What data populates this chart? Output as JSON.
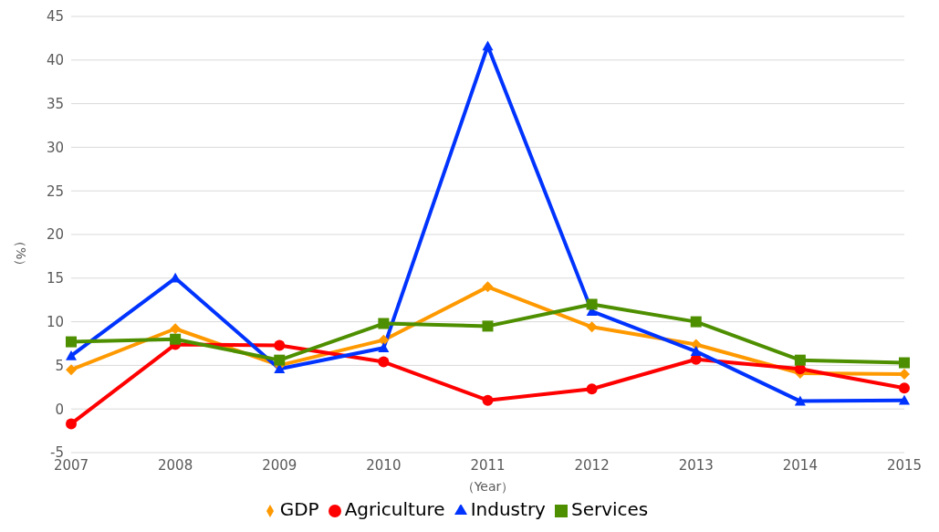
{
  "chart_data": {
    "type": "line",
    "xlabel": "（Year）",
    "ylabel": "（%）",
    "categories": [
      "2007",
      "2008",
      "2009",
      "2010",
      "2011",
      "2012",
      "2013",
      "2014",
      "2015"
    ],
    "series": [
      {
        "name": "GDP",
        "color": "#ff9900",
        "marker": "diamond",
        "values": [
          4.5,
          9.2,
          5.0,
          7.9,
          14.0,
          9.4,
          7.4,
          4.1,
          4.0
        ]
      },
      {
        "name": "Agriculture",
        "color": "#ff0000",
        "marker": "circle",
        "values": [
          -1.7,
          7.4,
          7.3,
          5.4,
          1.0,
          2.3,
          5.7,
          4.6,
          2.4
        ]
      },
      {
        "name": "Industry",
        "color": "#0033ff",
        "marker": "triangle",
        "values": [
          6.1,
          15.0,
          4.6,
          7.0,
          41.6,
          11.2,
          6.6,
          0.9,
          1.0
        ]
      },
      {
        "name": "Services",
        "color": "#4e8f00",
        "marker": "square",
        "values": [
          7.7,
          8.0,
          5.6,
          9.8,
          9.5,
          12.0,
          10.0,
          5.6,
          5.3
        ]
      }
    ],
    "ylim": [
      -5,
      45
    ],
    "yticks": [
      -5,
      0,
      5,
      10,
      15,
      20,
      25,
      30,
      35,
      40,
      45
    ],
    "grid": "y",
    "legend": "bottom",
    "line_style": "solid"
  }
}
